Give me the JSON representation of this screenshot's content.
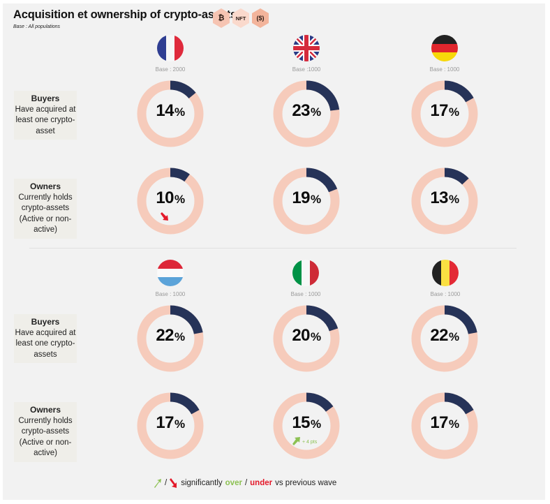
{
  "title": "Acquisition et ownership of crypto-assets",
  "subtitle": "Base : All populations",
  "badges": [
    {
      "icon": "bitcoin-icon",
      "label": "₿"
    },
    {
      "icon": "nft-icon",
      "label": "NFT"
    },
    {
      "icon": "dollar-coin-icon",
      "label": "($)"
    }
  ],
  "row_labels": {
    "buyers_title": "Buyers",
    "buyers_desc_top": "Have acquired at least one crypto-asset",
    "buyers_desc_bottom": "Have acquired at least one crypto-assets",
    "owners_title": "Owners",
    "owners_desc": "Currently holds crypto-assets (Active or non-active)"
  },
  "countries": [
    {
      "name": "France",
      "flag": "france-flag",
      "base": "Base : 2000"
    },
    {
      "name": "United Kingdom",
      "flag": "uk-flag",
      "base": "Base :1000"
    },
    {
      "name": "Germany",
      "flag": "germany-flag",
      "base": "Base : 1000"
    },
    {
      "name": "Luxembourg",
      "flag": "luxembourg-flag",
      "base": "Base : 1000"
    },
    {
      "name": "Italy",
      "flag": "italy-flag",
      "base": "Base : 1000"
    },
    {
      "name": "Belgium",
      "flag": "belgium-flag",
      "base": "Base : 1000"
    }
  ],
  "colors": {
    "filled": "#263358",
    "track": "#f6cbbb",
    "over": "#8cc152",
    "under": "#e3192a"
  },
  "legend": {
    "prefix": "/",
    "text1": "significantly",
    "over": "over",
    "sep": "/",
    "under": "under",
    "text2": "vs previous wave"
  },
  "chart_data": {
    "type": "pie",
    "title": "Acquisition et ownership of crypto-assets",
    "subtitle": "Base : All populations",
    "categories": [
      "France",
      "United Kingdom",
      "Germany",
      "Luxembourg",
      "Italy",
      "Belgium"
    ],
    "bases": [
      2000,
      1000,
      1000,
      1000,
      1000,
      1000
    ],
    "series": [
      {
        "name": "Buyers",
        "values": [
          14,
          23,
          17,
          22,
          20,
          22
        ],
        "unit": "%"
      },
      {
        "name": "Owners",
        "values": [
          10,
          19,
          13,
          17,
          15,
          17
        ],
        "unit": "%"
      }
    ],
    "trends": [
      {
        "country": "France",
        "series": "Owners",
        "direction": "down",
        "note": ""
      },
      {
        "country": "Italy",
        "series": "Owners",
        "direction": "up",
        "note": "+ 4 pts"
      }
    ],
    "legend": "significantly over / under vs previous wave"
  }
}
